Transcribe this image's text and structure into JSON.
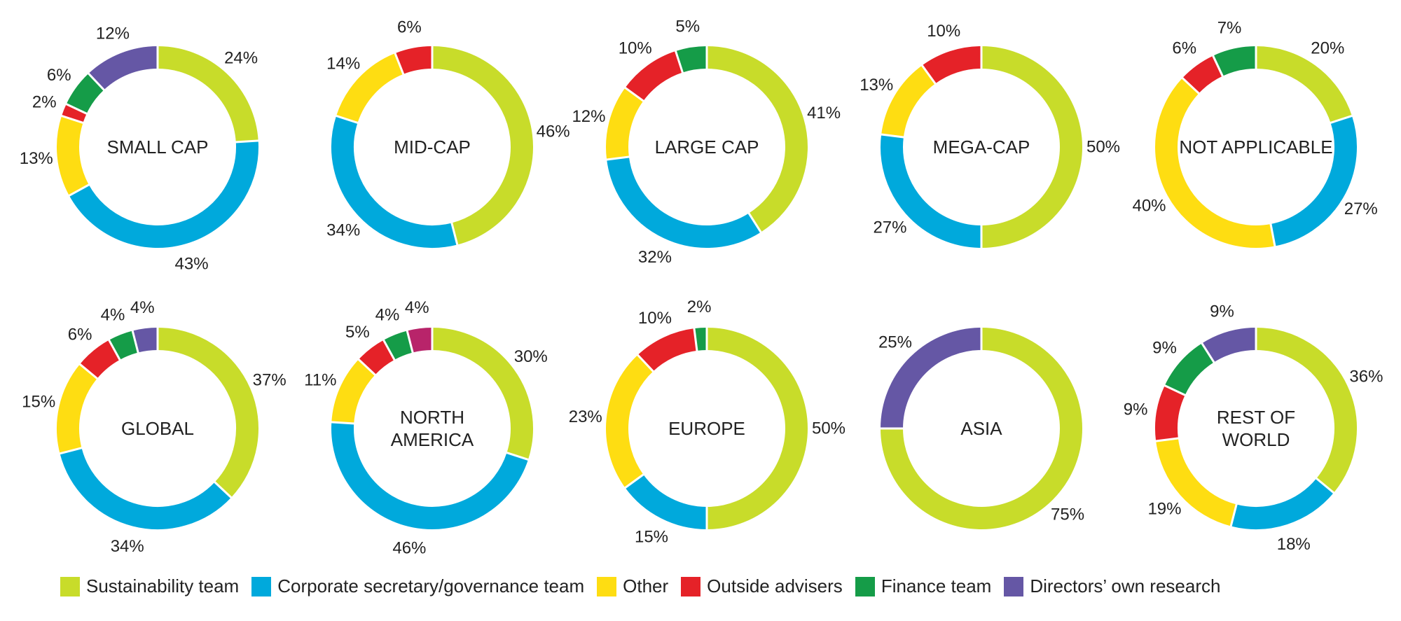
{
  "chart_data": {
    "type": "pie",
    "legend_position": "bottom",
    "legend": [
      {
        "key": "sustainability",
        "label": "Sustainability team",
        "color": "#c8dc2a"
      },
      {
        "key": "corporate",
        "label": "Corporate secretary/governance team",
        "color": "#00a9dc"
      },
      {
        "key": "other",
        "label": "Other",
        "color": "#fedd12"
      },
      {
        "key": "advisers",
        "label": "Outside advisers",
        "color": "#e52228"
      },
      {
        "key": "finance",
        "label": "Finance team",
        "color": "#159c48"
      },
      {
        "key": "directors",
        "label": "Directors’ own research",
        "color": "#6557a5"
      },
      {
        "key": "unlabeled",
        "label": "",
        "color": "#b8246a"
      }
    ],
    "charts": [
      {
        "label": [
          "SMALL CAP"
        ],
        "slices": [
          {
            "key": "sustainability",
            "value": 24,
            "label": "24%"
          },
          {
            "key": "corporate",
            "value": 43,
            "label": "43%"
          },
          {
            "key": "other",
            "value": 13,
            "label": "13%"
          },
          {
            "key": "advisers",
            "value": 2,
            "label": "2%"
          },
          {
            "key": "finance",
            "value": 6,
            "label": "6%"
          },
          {
            "key": "directors",
            "value": 12,
            "label": "12%"
          }
        ]
      },
      {
        "label": [
          "MID-CAP"
        ],
        "slices": [
          {
            "key": "sustainability",
            "value": 46,
            "label": "46%"
          },
          {
            "key": "corporate",
            "value": 34,
            "label": "34%"
          },
          {
            "key": "other",
            "value": 14,
            "label": "14%"
          },
          {
            "key": "advisers",
            "value": 6,
            "label": "6%"
          }
        ]
      },
      {
        "label": [
          "LARGE CAP"
        ],
        "slices": [
          {
            "key": "sustainability",
            "value": 41,
            "label": "41%"
          },
          {
            "key": "corporate",
            "value": 32,
            "label": "32%"
          },
          {
            "key": "other",
            "value": 12,
            "label": "12%"
          },
          {
            "key": "advisers",
            "value": 10,
            "label": "10%"
          },
          {
            "key": "finance",
            "value": 5,
            "label": "5%"
          }
        ]
      },
      {
        "label": [
          "MEGA-CAP"
        ],
        "slices": [
          {
            "key": "sustainability",
            "value": 50,
            "label": "50%"
          },
          {
            "key": "corporate",
            "value": 27,
            "label": "27%"
          },
          {
            "key": "other",
            "value": 13,
            "label": "13%"
          },
          {
            "key": "advisers",
            "value": 10,
            "label": "10%"
          }
        ]
      },
      {
        "label": [
          "NOT APPLICABLE"
        ],
        "slices": [
          {
            "key": "sustainability",
            "value": 20,
            "label": "20%"
          },
          {
            "key": "corporate",
            "value": 27,
            "label": "27%"
          },
          {
            "key": "other",
            "value": 40,
            "label": "40%"
          },
          {
            "key": "advisers",
            "value": 6,
            "label": "6%"
          },
          {
            "key": "finance",
            "value": 7,
            "label": "7%"
          }
        ]
      },
      {
        "label": [
          "GLOBAL"
        ],
        "slices": [
          {
            "key": "sustainability",
            "value": 37,
            "label": "37%"
          },
          {
            "key": "corporate",
            "value": 34,
            "label": "34%"
          },
          {
            "key": "other",
            "value": 15,
            "label": "15%"
          },
          {
            "key": "advisers",
            "value": 6,
            "label": "6%"
          },
          {
            "key": "finance",
            "value": 4,
            "label": "4%"
          },
          {
            "key": "directors",
            "value": 4,
            "label": "4%"
          }
        ]
      },
      {
        "label": [
          "NORTH",
          "AMERICA"
        ],
        "slices": [
          {
            "key": "sustainability",
            "value": 30,
            "label": "30%"
          },
          {
            "key": "corporate",
            "value": 46,
            "label": "46%"
          },
          {
            "key": "other",
            "value": 11,
            "label": "11%"
          },
          {
            "key": "advisers",
            "value": 5,
            "label": "5%"
          },
          {
            "key": "finance",
            "value": 4,
            "label": "4%"
          },
          {
            "key": "unlabeled",
            "value": 4,
            "label": "4%"
          }
        ]
      },
      {
        "label": [
          "EUROPE"
        ],
        "slices": [
          {
            "key": "sustainability",
            "value": 50,
            "label": "50%"
          },
          {
            "key": "corporate",
            "value": 15,
            "label": "15%"
          },
          {
            "key": "other",
            "value": 23,
            "label": "23%"
          },
          {
            "key": "advisers",
            "value": 10,
            "label": "10%"
          },
          {
            "key": "finance",
            "value": 2,
            "label": "2%"
          }
        ]
      },
      {
        "label": [
          "ASIA"
        ],
        "slices": [
          {
            "key": "sustainability",
            "value": 75,
            "label": "75%"
          },
          {
            "key": "directors",
            "value": 25,
            "label": "25%"
          }
        ]
      },
      {
        "label": [
          "REST OF",
          "WORLD"
        ],
        "slices": [
          {
            "key": "sustainability",
            "value": 36,
            "label": "36%"
          },
          {
            "key": "corporate",
            "value": 18,
            "label": "18%"
          },
          {
            "key": "other",
            "value": 19,
            "label": "19%"
          },
          {
            "key": "advisers",
            "value": 9,
            "label": "9%"
          },
          {
            "key": "finance",
            "value": 9,
            "label": "9%"
          },
          {
            "key": "directors",
            "value": 9,
            "label": "9%"
          }
        ]
      }
    ]
  }
}
